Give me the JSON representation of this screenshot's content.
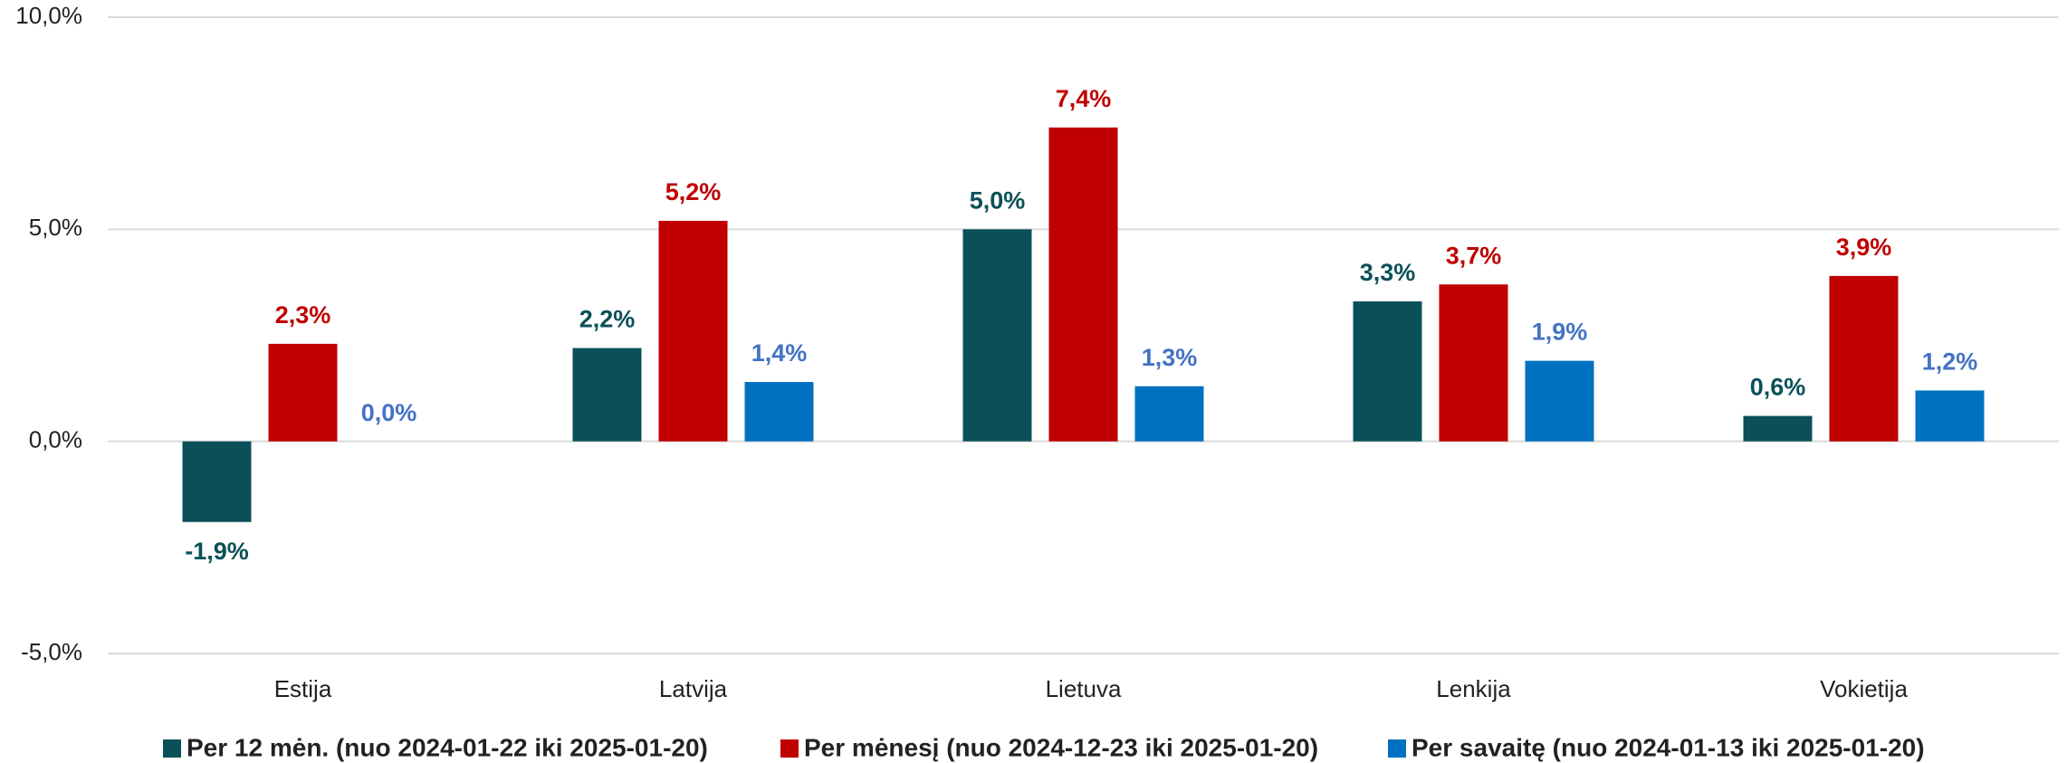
{
  "chart_data": {
    "type": "bar",
    "categories": [
      "Estija",
      "Latvija",
      "Lietuva",
      "Lenkija",
      "Vokietija"
    ],
    "series": [
      {
        "name": "Per 12 mėn. (nuo 2024-01-22 iki 2025-01-20)",
        "color": "#0b5058",
        "label_color": "#0b5058",
        "values": [
          -1.9,
          2.2,
          5.0,
          3.3,
          0.6
        ],
        "value_labels": [
          "-1,9%",
          "2,2%",
          "5,0%",
          "3,3%",
          "0,6%"
        ]
      },
      {
        "name": "Per mėnesį (nuo 2024-12-23 iki 2025-01-20)",
        "color": "#c00000",
        "label_color": "#c00000",
        "values": [
          2.3,
          5.2,
          7.4,
          3.7,
          3.9
        ],
        "value_labels": [
          "2,3%",
          "5,2%",
          "7,4%",
          "3,7%",
          "3,9%"
        ]
      },
      {
        "name": "Per savaitę (nuo 2024-01-13 iki 2025-01-20)",
        "color": "#0070c0",
        "label_color": "#4472c4",
        "values": [
          0.0,
          1.4,
          1.3,
          1.9,
          1.2
        ],
        "value_labels": [
          "0,0%",
          "1,4%",
          "1,3%",
          "1,9%",
          "1,2%"
        ]
      }
    ],
    "ylim": [
      -5,
      10
    ],
    "yticks": [
      {
        "value": -5,
        "label": "-5,0%"
      },
      {
        "value": 0,
        "label": "0,0%"
      },
      {
        "value": 5,
        "label": "5,0%"
      },
      {
        "value": 10,
        "label": "10,0%"
      }
    ],
    "grid": true,
    "legend": "bottom"
  }
}
